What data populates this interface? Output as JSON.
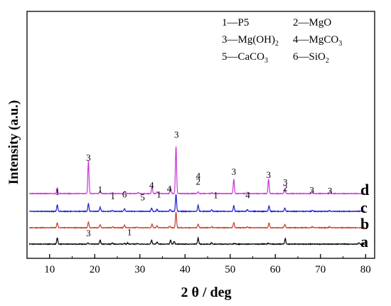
{
  "chart_data": {
    "type": "line",
    "xlabel": "2 θ / deg",
    "ylabel": "Intensity (a.u.)",
    "xlim": [
      5,
      82
    ],
    "xticks": [
      10,
      20,
      30,
      40,
      50,
      60,
      70,
      80
    ],
    "legend": {
      "placement": "top-right",
      "entries": [
        {
          "num": "1",
          "dash": "—",
          "name": "P5"
        },
        {
          "num": "2",
          "dash": "—",
          "name": "MgO"
        },
        {
          "num": "3",
          "dash": "—",
          "name": "Mg(OH)",
          "sub": "2"
        },
        {
          "num": "4",
          "dash": "—",
          "name": "MgCO",
          "sub": "3"
        },
        {
          "num": "5",
          "dash": "—",
          "name": "CaCO",
          "sub": "3"
        },
        {
          "num": "6",
          "dash": "—",
          "name": "SiO",
          "sub": "2"
        }
      ]
    },
    "series": [
      {
        "name": "a",
        "color": "#000000",
        "peaks": [
          {
            "x": 11.7,
            "h": 0.36
          },
          {
            "x": 18.5,
            "h": 0.06
          },
          {
            "x": 21.2,
            "h": 0.24
          },
          {
            "x": 23.9,
            "h": 0.06
          },
          {
            "x": 26.6,
            "h": 0.05
          },
          {
            "x": 27.3,
            "h": 0.06
          },
          {
            "x": 29.4,
            "h": 0.03
          },
          {
            "x": 32.6,
            "h": 0.22
          },
          {
            "x": 33.8,
            "h": 0.12
          },
          {
            "x": 36.8,
            "h": 0.24
          },
          {
            "x": 37.6,
            "h": 0.16
          },
          {
            "x": 42.9,
            "h": 0.36
          },
          {
            "x": 45.9,
            "h": 0.08
          },
          {
            "x": 51.0,
            "h": 0.05
          },
          {
            "x": 58.4,
            "h": 0.06
          },
          {
            "x": 62.2,
            "h": 0.32
          },
          {
            "x": 78.5,
            "h": 0.08
          }
        ]
      },
      {
        "name": "b",
        "color": "#c8402a",
        "peaks": [
          {
            "x": 11.7,
            "h": 0.28
          },
          {
            "x": 18.6,
            "h": 0.34
          },
          {
            "x": 21.2,
            "h": 0.18
          },
          {
            "x": 24.0,
            "h": 0.06
          },
          {
            "x": 26.6,
            "h": 0.16
          },
          {
            "x": 29.4,
            "h": 0.03
          },
          {
            "x": 32.7,
            "h": 0.22
          },
          {
            "x": 33.8,
            "h": 0.12
          },
          {
            "x": 36.6,
            "h": 0.1
          },
          {
            "x": 38.0,
            "h": 0.92
          },
          {
            "x": 42.9,
            "h": 0.22
          },
          {
            "x": 45.9,
            "h": 0.06
          },
          {
            "x": 50.8,
            "h": 0.3
          },
          {
            "x": 53.8,
            "h": 0.06
          },
          {
            "x": 58.6,
            "h": 0.28
          },
          {
            "x": 62.1,
            "h": 0.2
          },
          {
            "x": 68.2,
            "h": 0.06
          },
          {
            "x": 72.0,
            "h": 0.05
          }
        ]
      },
      {
        "name": "c",
        "color": "#1c1cd6",
        "peaks": [
          {
            "x": 11.7,
            "h": 0.38
          },
          {
            "x": 18.6,
            "h": 0.46
          },
          {
            "x": 21.2,
            "h": 0.24
          },
          {
            "x": 23.9,
            "h": 0.05
          },
          {
            "x": 26.6,
            "h": 0.16
          },
          {
            "x": 32.6,
            "h": 0.2
          },
          {
            "x": 33.8,
            "h": 0.12
          },
          {
            "x": 36.7,
            "h": 0.12
          },
          {
            "x": 38.0,
            "h": 1.0
          },
          {
            "x": 42.9,
            "h": 0.36
          },
          {
            "x": 45.9,
            "h": 0.1
          },
          {
            "x": 50.8,
            "h": 0.34
          },
          {
            "x": 53.8,
            "h": 0.1
          },
          {
            "x": 58.6,
            "h": 0.34
          },
          {
            "x": 62.1,
            "h": 0.2
          },
          {
            "x": 68.2,
            "h": 0.06
          },
          {
            "x": 72.0,
            "h": 0.05
          }
        ]
      },
      {
        "name": "d",
        "color": "#cc33dd",
        "peaks": [
          {
            "x": 11.7,
            "h": 0.32
          },
          {
            "x": 18.6,
            "h": 1.92
          },
          {
            "x": 21.2,
            "h": 0.16
          },
          {
            "x": 23.9,
            "h": 0.05
          },
          {
            "x": 26.6,
            "h": 0.12
          },
          {
            "x": 29.6,
            "h": 0.05
          },
          {
            "x": 32.7,
            "h": 0.42
          },
          {
            "x": 33.8,
            "h": 0.1
          },
          {
            "x": 36.8,
            "h": 0.34
          },
          {
            "x": 38.0,
            "h": 2.76
          },
          {
            "x": 42.9,
            "h": 0.1
          },
          {
            "x": 46.0,
            "h": 0.04
          },
          {
            "x": 50.8,
            "h": 0.82
          },
          {
            "x": 53.8,
            "h": 0.06
          },
          {
            "x": 58.5,
            "h": 0.84
          },
          {
            "x": 62.1,
            "h": 0.28
          },
          {
            "x": 68.1,
            "h": 0.16
          },
          {
            "x": 72.1,
            "h": 0.12
          }
        ]
      }
    ],
    "annotations": [
      {
        "text": "1",
        "x": 11.7,
        "y": 2.88
      },
      {
        "text": "3",
        "x": 18.6,
        "y": 4.88
      },
      {
        "text": "1",
        "x": 21.2,
        "y": 3.02
      },
      {
        "text": "1",
        "x": 24.0,
        "y": 2.62
      },
      {
        "text": "6",
        "x": 26.6,
        "y": 2.73
      },
      {
        "text": "5",
        "x": 30.6,
        "y": 2.57
      },
      {
        "text": "4",
        "x": 32.6,
        "y": 3.28
      },
      {
        "text": "1",
        "x": 34.2,
        "y": 2.73
      },
      {
        "text": "4",
        "x": 36.5,
        "y": 3.07
      },
      {
        "text": "3",
        "x": 38.1,
        "y": 6.23
      },
      {
        "text": "4",
        "x": 42.9,
        "y": 3.82
      },
      {
        "text": "2",
        "x": 42.9,
        "y": 3.48
      },
      {
        "text": "1",
        "x": 46.8,
        "y": 2.68
      },
      {
        "text": "3",
        "x": 50.8,
        "y": 4.07
      },
      {
        "text": "4",
        "x": 53.9,
        "y": 2.68
      },
      {
        "text": "3",
        "x": 58.5,
        "y": 3.88
      },
      {
        "text": "3",
        "x": 62.2,
        "y": 3.43
      },
      {
        "text": "2",
        "x": 62.2,
        "y": 3.1
      },
      {
        "text": "3",
        "x": 68.1,
        "y": 2.98
      },
      {
        "text": "3",
        "x": 72.1,
        "y": 2.94
      },
      {
        "text": "3",
        "x": 18.6,
        "y": 0.45
      },
      {
        "text": "1",
        "x": 27.7,
        "y": 0.52
      }
    ]
  }
}
